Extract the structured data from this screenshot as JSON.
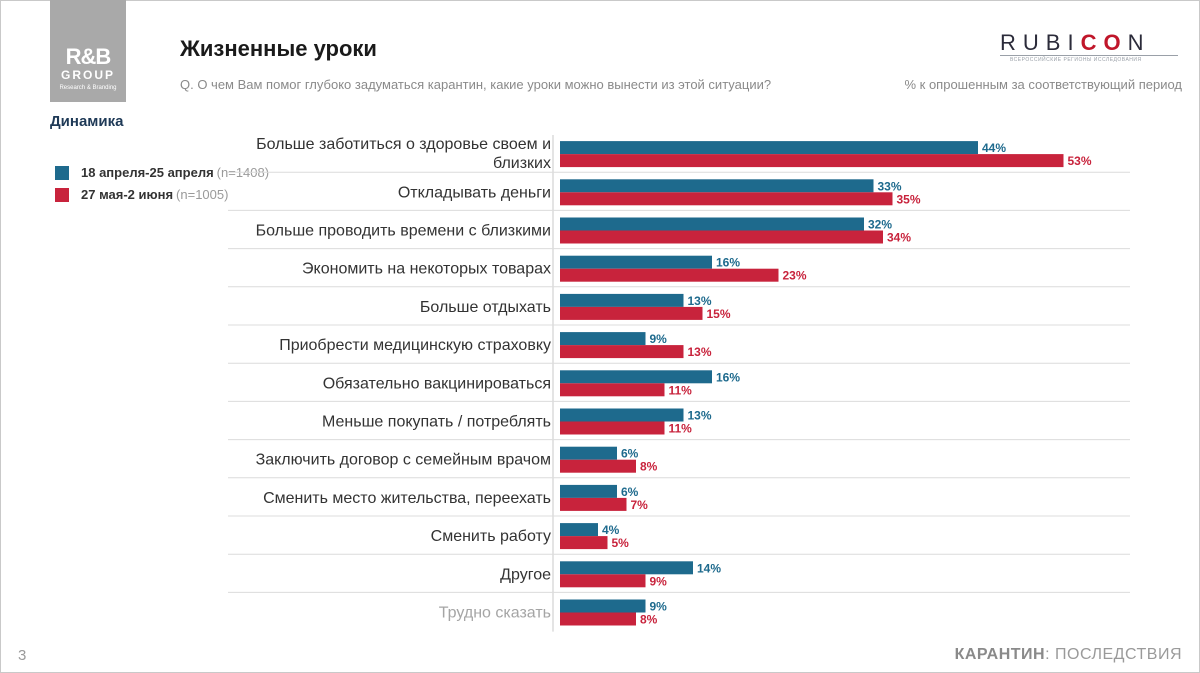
{
  "header": {
    "logo_main": "R&B",
    "logo_group": "GROUP",
    "logo_sub": "Research & Branding",
    "title": "Жизненные уроки",
    "question": "Q. О чем Вам помог глубоко задуматься карантин, какие уроки можно вынести из этой ситуации?",
    "brand_a": "RUBI",
    "brand_b": "CO",
    "brand_c": "N",
    "brand_tagline": "ВСЕРОССИЙСКИЕ РЕГИОНЫ ИССЛЕДОВАНИЯ",
    "note": "% к опрошенным за соответствующий период",
    "dynamics": "Динамика"
  },
  "legend": [
    {
      "label": "18 апреля-25 апреля",
      "n": "(n=1408)",
      "color": "#1e6a8d"
    },
    {
      "label": "27 мая-2 июня",
      "n": "(n=1005)",
      "color": "#c8233c"
    }
  ],
  "chart_data": {
    "type": "bar",
    "orientation": "horizontal",
    "categories": [
      "Больше заботиться о здоровье своем и близких",
      "Откладывать деньги",
      "Больше проводить времени с близкими",
      "Экономить на некоторых товарах",
      "Больше отдыхать",
      "Приобрести медицинскую страховку",
      "Обязательно вакцинироваться",
      "Меньше покупать / потреблять",
      "Заключить договор с семейным врачом",
      "Сменить место жительства, переехать",
      "Сменить работу",
      "Другое",
      "Трудно сказать"
    ],
    "series": [
      {
        "name": "18 апреля-25 апреля",
        "color": "#1e6a8d",
        "values": [
          44,
          33,
          32,
          16,
          13,
          9,
          16,
          13,
          6,
          6,
          4,
          14,
          9
        ]
      },
      {
        "name": "27 мая-2 июня",
        "color": "#c8233c",
        "values": [
          53,
          35,
          34,
          23,
          15,
          13,
          11,
          11,
          8,
          7,
          5,
          9,
          8
        ]
      }
    ],
    "value_suffix": "%",
    "xlim": [
      0,
      60
    ]
  },
  "footer": {
    "page": "3",
    "left": "КАРАНТИН",
    "right": ": ПОСЛЕДСТВИЯ"
  }
}
